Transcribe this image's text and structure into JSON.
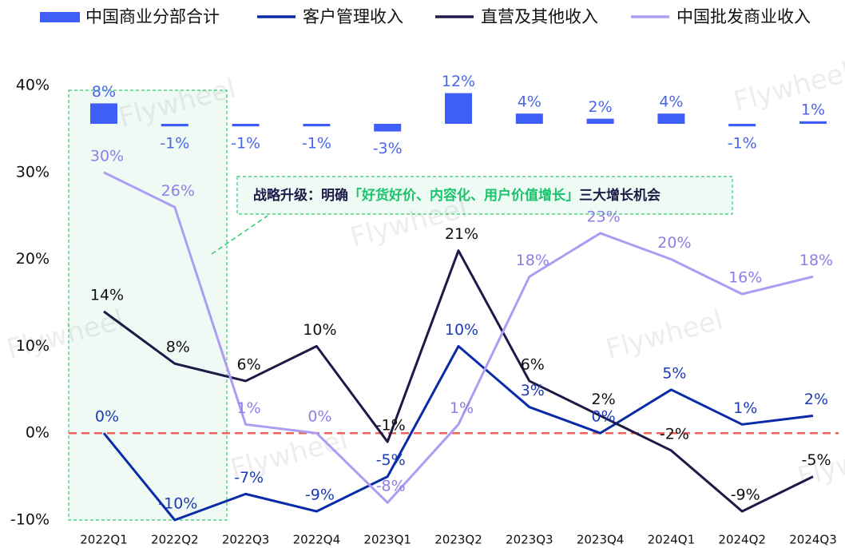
{
  "chart_data": {
    "type": "bar-line",
    "categories": [
      "2022Q1",
      "2022Q2",
      "2022Q3",
      "2022Q4",
      "2023Q1",
      "2023Q2",
      "2023Q3",
      "2023Q4",
      "2024Q1",
      "2024Q2",
      "2024Q3"
    ],
    "ylim": [
      -10,
      40
    ],
    "yticks": [
      {
        "value": -10,
        "label": "-10%"
      },
      {
        "value": 0,
        "label": "0%"
      },
      {
        "value": 10,
        "label": "10%"
      },
      {
        "value": 20,
        "label": "20%"
      },
      {
        "value": 30,
        "label": "30%"
      },
      {
        "value": 40,
        "label": "40%"
      }
    ],
    "y2lim": [
      -155,
      15
    ],
    "reference_line": {
      "value": 0,
      "color": "#f0625a"
    },
    "legend": "top",
    "series": [
      {
        "name": "中国商业分部合计",
        "type": "bar",
        "axis": "y2",
        "color": "#3f5ef7",
        "label_color": "#4a66e8",
        "values": [
          8,
          -1,
          -1,
          -1,
          -3,
          12,
          4,
          2,
          4,
          -1,
          1
        ],
        "value_labels": [
          "8%",
          "-1%",
          "-1%",
          "-1%",
          "-3%",
          "12%",
          "4%",
          "2%",
          "4%",
          "-1%",
          "1%"
        ]
      },
      {
        "name": "客户管理收入",
        "type": "line",
        "color": "#0a2ba8",
        "label_color": "#1b3bb5",
        "values": [
          0,
          -10,
          -7,
          -9,
          -5,
          10,
          3,
          0,
          5,
          1,
          2
        ],
        "value_labels": [
          "0%",
          "-10%",
          "-7%",
          "-9%",
          "-5%",
          "10%",
          "3%",
          "0%",
          "5%",
          "1%",
          "2%"
        ]
      },
      {
        "name": "直营及其他收入",
        "type": "line",
        "color": "#1d1a48",
        "label_color": "#111111",
        "values": [
          14,
          8,
          6,
          10,
          -1,
          21,
          6,
          2,
          -2,
          -9,
          -5
        ],
        "value_labels": [
          "14%",
          "8%",
          "6%",
          "10%",
          "-1%",
          "21%",
          "6%",
          "2%",
          "-2%",
          "-9%",
          "-5%"
        ]
      },
      {
        "name": "中国批发商业收入",
        "type": "line",
        "color": "#ab9ef2",
        "label_color": "#8e7fe6",
        "values": [
          30,
          26,
          1,
          0,
          -8,
          1,
          18,
          23,
          20,
          16,
          18
        ],
        "value_labels": [
          "30%",
          "26%",
          "1%",
          "0%",
          "-8%",
          "1%",
          "18%",
          "23%",
          "20%",
          "16%",
          "18%"
        ]
      }
    ],
    "annotation": [
      "战略升级：明确",
      "「好货好价、内容化、用户价值增长」",
      "三大增长机会"
    ],
    "watermark": "Flywheel"
  }
}
